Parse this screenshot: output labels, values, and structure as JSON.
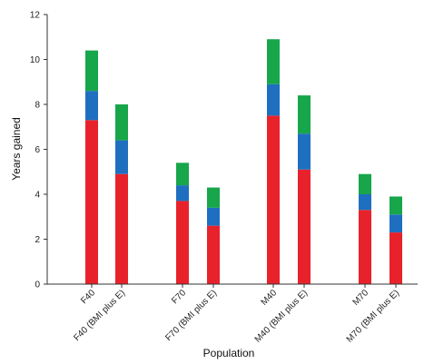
{
  "chart_data": {
    "type": "bar",
    "stacked": true,
    "categories": [
      "F40",
      "F40 (BMI plus E)",
      "F70",
      "F70 (BMI plus E)",
      "M40",
      "M40 (BMI plus E)",
      "M70",
      "M70 (BMI plus E)"
    ],
    "series": [
      {
        "color": "#e8222a",
        "values": [
          7.3,
          4.9,
          3.7,
          2.6,
          7.5,
          5.1,
          3.3,
          2.3
        ]
      },
      {
        "color": "#1f6fc0",
        "values": [
          1.3,
          1.5,
          0.7,
          0.8,
          1.4,
          1.6,
          0.7,
          0.8
        ]
      },
      {
        "color": "#17a64a",
        "values": [
          1.8,
          1.6,
          1.0,
          0.9,
          2.0,
          1.7,
          0.9,
          0.8
        ]
      }
    ],
    "xlabel": "Population",
    "ylabel": "Years gained",
    "ylim": [
      0,
      12
    ],
    "yticks": [
      "0",
      "2",
      "4",
      "6",
      "8",
      "10",
      "12"
    ],
    "grid": false,
    "legend": "none"
  }
}
